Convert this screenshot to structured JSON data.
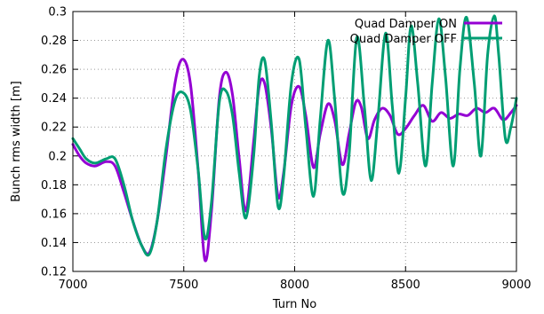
{
  "chart_data": {
    "type": "line",
    "title": "",
    "xlabel": "Turn No",
    "ylabel": "Bunch rms width [m]",
    "xlim": [
      7000,
      9000
    ],
    "ylim": [
      0.12,
      0.3
    ],
    "x_ticks": [
      "7000",
      "7500",
      "8000",
      "8500",
      "9000"
    ],
    "y_ticks": [
      "0.12",
      "0.14",
      "0.16",
      "0.18",
      "0.2",
      "0.22",
      "0.24",
      "0.26",
      "0.28",
      "0.3"
    ],
    "grid": true,
    "legend_position": "top-right",
    "series": [
      {
        "name": "Quad Damper ON",
        "color": "#9400d3",
        "x": [
          7000,
          7030,
          7060,
          7100,
          7150,
          7190,
          7230,
          7270,
          7310,
          7345,
          7380,
          7420,
          7460,
          7495,
          7530,
          7565,
          7595,
          7625,
          7660,
          7690,
          7720,
          7750,
          7780,
          7815,
          7840,
          7865,
          7895,
          7925,
          7950,
          7985,
          8020,
          8050,
          8085,
          8115,
          8150,
          8180,
          8215,
          8245,
          8275,
          8300,
          8330,
          8360,
          8395,
          8430,
          8465,
          8500,
          8540,
          8580,
          8620,
          8660,
          8700,
          8740,
          8780,
          8820,
          8860,
          8900,
          8940,
          8975,
          9000
        ],
        "y": [
          0.208,
          0.2,
          0.195,
          0.193,
          0.196,
          0.193,
          0.175,
          0.155,
          0.138,
          0.133,
          0.155,
          0.2,
          0.25,
          0.267,
          0.25,
          0.19,
          0.128,
          0.162,
          0.24,
          0.258,
          0.242,
          0.198,
          0.162,
          0.21,
          0.248,
          0.25,
          0.218,
          0.172,
          0.188,
          0.235,
          0.248,
          0.228,
          0.192,
          0.215,
          0.236,
          0.225,
          0.194,
          0.215,
          0.237,
          0.234,
          0.212,
          0.225,
          0.233,
          0.228,
          0.215,
          0.219,
          0.228,
          0.235,
          0.224,
          0.23,
          0.226,
          0.229,
          0.228,
          0.233,
          0.23,
          0.233,
          0.225,
          0.23,
          0.235
        ]
      },
      {
        "name": "Quad Damper OFF",
        "color": "#009e73",
        "x": [
          7000,
          7030,
          7060,
          7100,
          7150,
          7190,
          7230,
          7270,
          7310,
          7345,
          7380,
          7420,
          7460,
          7495,
          7530,
          7565,
          7595,
          7625,
          7660,
          7690,
          7720,
          7750,
          7780,
          7815,
          7840,
          7865,
          7895,
          7925,
          7950,
          7985,
          8020,
          8050,
          8085,
          8115,
          8150,
          8180,
          8215,
          8245,
          8280,
          8315,
          8345,
          8375,
          8410,
          8440,
          8470,
          8500,
          8525,
          8555,
          8590,
          8620,
          8650,
          8680,
          8715,
          8745,
          8775,
          8810,
          8840,
          8870,
          8900,
          8920,
          8950,
          8975,
          9000
        ],
        "y": [
          0.212,
          0.205,
          0.198,
          0.195,
          0.198,
          0.198,
          0.18,
          0.155,
          0.138,
          0.132,
          0.155,
          0.205,
          0.238,
          0.244,
          0.232,
          0.19,
          0.143,
          0.168,
          0.237,
          0.245,
          0.228,
          0.188,
          0.157,
          0.2,
          0.255,
          0.266,
          0.222,
          0.165,
          0.185,
          0.25,
          0.267,
          0.22,
          0.172,
          0.225,
          0.28,
          0.24,
          0.175,
          0.2,
          0.282,
          0.233,
          0.183,
          0.225,
          0.285,
          0.235,
          0.188,
          0.24,
          0.29,
          0.25,
          0.193,
          0.25,
          0.295,
          0.255,
          0.193,
          0.26,
          0.296,
          0.25,
          0.2,
          0.27,
          0.297,
          0.27,
          0.212,
          0.22,
          0.24
        ]
      }
    ]
  }
}
